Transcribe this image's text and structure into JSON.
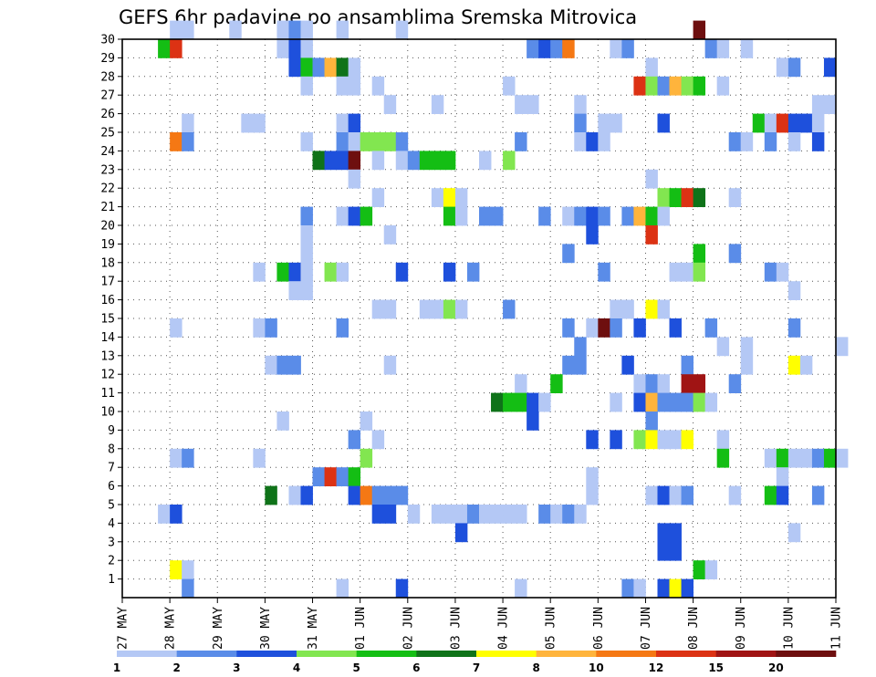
{
  "chart_data": {
    "type": "heatmap",
    "title": "GEFS 6hr padavine po ansamblima Sremska Mitrovica",
    "x_ticks": [
      "27 MAY",
      "28 MAY",
      "29 MAY",
      "30 MAY",
      "31 MAY",
      "01 JUN",
      "02 JUN",
      "03 JUN",
      "04 JUN",
      "05 JUN",
      "06 JUN",
      "07 JUN",
      "08 JUN",
      "09 JUN",
      "10 JUN",
      "11 JUN"
    ],
    "x_range_days": [
      0,
      15
    ],
    "time_step_hours": 6,
    "y_ticks": [
      1,
      2,
      3,
      4,
      5,
      6,
      7,
      8,
      9,
      10,
      11,
      12,
      13,
      14,
      15,
      16,
      17,
      18,
      19,
      20,
      21,
      22,
      23,
      24,
      25,
      26,
      27,
      28,
      29,
      30
    ],
    "y_range": [
      0,
      30
    ],
    "grid": "dotted",
    "colorbar": {
      "labels": [
        "1",
        "2",
        "3",
        "4",
        "5",
        "6",
        "7",
        "8",
        "10",
        "12",
        "15",
        "20"
      ],
      "colors": [
        "#b4c8f5",
        "#5a8ce8",
        "#1e50dc",
        "#82e650",
        "#14be14",
        "#0f7319",
        "#ffff00",
        "#ffb43c",
        "#f57814",
        "#dc3214",
        "#a01414",
        "#6e0f0f"
      ]
    },
    "cells": [
      [
        30,
        4,
        1
      ],
      [
        30,
        5,
        1
      ],
      [
        30,
        9,
        1
      ],
      [
        30,
        13,
        1
      ],
      [
        30,
        14,
        2
      ],
      [
        30,
        15,
        1
      ],
      [
        30,
        18,
        1
      ],
      [
        30,
        23,
        1
      ],
      [
        30,
        48,
        12
      ],
      [
        29,
        3,
        5
      ],
      [
        29,
        4,
        10
      ],
      [
        29,
        13,
        1
      ],
      [
        29,
        14,
        3
      ],
      [
        29,
        15,
        1
      ],
      [
        29,
        34,
        2
      ],
      [
        29,
        35,
        3
      ],
      [
        29,
        36,
        2
      ],
      [
        29,
        37,
        9
      ],
      [
        29,
        41,
        1
      ],
      [
        29,
        42,
        2
      ],
      [
        29,
        49,
        2
      ],
      [
        29,
        50,
        1
      ],
      [
        29,
        52,
        1
      ],
      [
        28,
        14,
        3
      ],
      [
        28,
        15,
        5
      ],
      [
        28,
        16,
        2
      ],
      [
        28,
        17,
        8
      ],
      [
        28,
        18,
        6
      ],
      [
        28,
        19,
        1
      ],
      [
        28,
        44,
        1
      ],
      [
        28,
        55,
        1
      ],
      [
        28,
        56,
        2
      ],
      [
        28,
        59,
        3
      ],
      [
        27,
        15,
        1
      ],
      [
        27,
        18,
        1
      ],
      [
        27,
        19,
        1
      ],
      [
        27,
        21,
        1
      ],
      [
        27,
        32,
        1
      ],
      [
        27,
        43,
        10
      ],
      [
        27,
        44,
        4
      ],
      [
        27,
        45,
        2
      ],
      [
        27,
        46,
        8
      ],
      [
        27,
        47,
        4
      ],
      [
        27,
        48,
        5
      ],
      [
        27,
        50,
        1
      ],
      [
        26,
        22,
        1
      ],
      [
        26,
        26,
        1
      ],
      [
        26,
        33,
        1
      ],
      [
        26,
        34,
        1
      ],
      [
        26,
        38,
        1
      ],
      [
        26,
        58,
        1
      ],
      [
        26,
        59,
        1
      ],
      [
        25,
        5,
        1
      ],
      [
        25,
        10,
        1
      ],
      [
        25,
        11,
        1
      ],
      [
        25,
        18,
        1
      ],
      [
        25,
        19,
        3
      ],
      [
        25,
        38,
        2
      ],
      [
        25,
        40,
        1
      ],
      [
        25,
        41,
        1
      ],
      [
        25,
        45,
        3
      ],
      [
        25,
        53,
        5
      ],
      [
        25,
        54,
        1
      ],
      [
        25,
        55,
        10
      ],
      [
        25,
        56,
        3
      ],
      [
        25,
        57,
        3
      ],
      [
        25,
        58,
        1
      ],
      [
        24,
        4,
        9
      ],
      [
        24,
        5,
        2
      ],
      [
        24,
        15,
        1
      ],
      [
        24,
        18,
        2
      ],
      [
        24,
        19,
        1
      ],
      [
        24,
        20,
        4
      ],
      [
        24,
        21,
        4
      ],
      [
        24,
        22,
        4
      ],
      [
        24,
        23,
        2
      ],
      [
        24,
        33,
        2
      ],
      [
        24,
        38,
        1
      ],
      [
        24,
        39,
        3
      ],
      [
        24,
        40,
        1
      ],
      [
        24,
        51,
        2
      ],
      [
        24,
        52,
        1
      ],
      [
        24,
        54,
        2
      ],
      [
        24,
        56,
        1
      ],
      [
        24,
        58,
        3
      ],
      [
        23,
        16,
        6
      ],
      [
        23,
        17,
        3
      ],
      [
        23,
        18,
        3
      ],
      [
        23,
        19,
        12
      ],
      [
        23,
        21,
        1
      ],
      [
        23,
        23,
        1
      ],
      [
        23,
        24,
        2
      ],
      [
        23,
        25,
        5
      ],
      [
        23,
        26,
        5
      ],
      [
        23,
        27,
        5
      ],
      [
        23,
        30,
        1
      ],
      [
        23,
        32,
        4
      ],
      [
        22,
        19,
        1
      ],
      [
        22,
        44,
        1
      ],
      [
        21,
        21,
        1
      ],
      [
        21,
        26,
        1
      ],
      [
        21,
        27,
        7
      ],
      [
        21,
        28,
        1
      ],
      [
        21,
        45,
        4
      ],
      [
        21,
        46,
        5
      ],
      [
        21,
        47,
        10
      ],
      [
        21,
        48,
        6
      ],
      [
        21,
        51,
        1
      ],
      [
        20,
        15,
        2
      ],
      [
        20,
        18,
        1
      ],
      [
        20,
        19,
        3
      ],
      [
        20,
        20,
        5
      ],
      [
        20,
        27,
        5
      ],
      [
        20,
        28,
        1
      ],
      [
        20,
        30,
        2
      ],
      [
        20,
        31,
        2
      ],
      [
        20,
        35,
        2
      ],
      [
        20,
        37,
        1
      ],
      [
        20,
        38,
        2
      ],
      [
        20,
        39,
        3
      ],
      [
        20,
        40,
        2
      ],
      [
        20,
        42,
        2
      ],
      [
        20,
        43,
        8
      ],
      [
        20,
        44,
        5
      ],
      [
        20,
        45,
        1
      ],
      [
        19,
        15,
        1
      ],
      [
        19,
        22,
        1
      ],
      [
        19,
        39,
        3
      ],
      [
        19,
        44,
        10
      ],
      [
        18,
        15,
        1
      ],
      [
        18,
        37,
        2
      ],
      [
        18,
        48,
        5
      ],
      [
        18,
        51,
        2
      ],
      [
        17,
        11,
        1
      ],
      [
        17,
        13,
        5
      ],
      [
        17,
        14,
        3
      ],
      [
        17,
        15,
        1
      ],
      [
        17,
        17,
        4
      ],
      [
        17,
        18,
        1
      ],
      [
        17,
        23,
        3
      ],
      [
        17,
        27,
        3
      ],
      [
        17,
        29,
        2
      ],
      [
        17,
        40,
        2
      ],
      [
        17,
        46,
        1
      ],
      [
        17,
        47,
        1
      ],
      [
        17,
        48,
        4
      ],
      [
        17,
        54,
        2
      ],
      [
        17,
        55,
        1
      ],
      [
        16,
        14,
        1
      ],
      [
        16,
        15,
        1
      ],
      [
        16,
        56,
        1
      ],
      [
        15,
        21,
        1
      ],
      [
        15,
        22,
        1
      ],
      [
        15,
        25,
        1
      ],
      [
        15,
        26,
        1
      ],
      [
        15,
        27,
        4
      ],
      [
        15,
        28,
        1
      ],
      [
        15,
        32,
        2
      ],
      [
        15,
        41,
        1
      ],
      [
        15,
        42,
        1
      ],
      [
        15,
        44,
        7
      ],
      [
        15,
        45,
        1
      ],
      [
        14,
        4,
        1
      ],
      [
        14,
        11,
        1
      ],
      [
        14,
        12,
        2
      ],
      [
        14,
        18,
        2
      ],
      [
        14,
        37,
        2
      ],
      [
        14,
        39,
        1
      ],
      [
        14,
        40,
        12
      ],
      [
        14,
        41,
        2
      ],
      [
        14,
        43,
        3
      ],
      [
        14,
        46,
        3
      ],
      [
        14,
        49,
        2
      ],
      [
        14,
        56,
        2
      ],
      [
        13,
        38,
        2
      ],
      [
        13,
        50,
        1
      ],
      [
        13,
        52,
        1
      ],
      [
        13,
        60,
        1
      ],
      [
        12,
        12,
        1
      ],
      [
        12,
        13,
        2
      ],
      [
        12,
        14,
        2
      ],
      [
        12,
        22,
        1
      ],
      [
        12,
        37,
        2
      ],
      [
        12,
        38,
        2
      ],
      [
        12,
        42,
        3
      ],
      [
        12,
        47,
        2
      ],
      [
        12,
        52,
        1
      ],
      [
        12,
        56,
        7
      ],
      [
        12,
        57,
        1
      ],
      [
        11,
        33,
        1
      ],
      [
        11,
        36,
        5
      ],
      [
        11,
        43,
        1
      ],
      [
        11,
        44,
        2
      ],
      [
        11,
        45,
        1
      ],
      [
        11,
        47,
        11
      ],
      [
        11,
        48,
        11
      ],
      [
        11,
        51,
        2
      ],
      [
        10,
        31,
        6
      ],
      [
        10,
        32,
        5
      ],
      [
        10,
        33,
        5
      ],
      [
        10,
        34,
        3
      ],
      [
        10,
        35,
        1
      ],
      [
        10,
        41,
        1
      ],
      [
        10,
        43,
        3
      ],
      [
        10,
        44,
        8
      ],
      [
        10,
        45,
        2
      ],
      [
        10,
        46,
        2
      ],
      [
        10,
        47,
        2
      ],
      [
        10,
        48,
        4
      ],
      [
        10,
        49,
        1
      ],
      [
        9,
        13,
        1
      ],
      [
        9,
        34,
        3
      ],
      [
        9,
        44,
        2
      ],
      [
        8,
        19,
        2
      ],
      [
        9,
        20,
        1
      ],
      [
        8,
        21,
        1
      ],
      [
        8,
        39,
        3
      ],
      [
        8,
        41,
        3
      ],
      [
        8,
        43,
        4
      ],
      [
        8,
        44,
        7
      ],
      [
        8,
        45,
        1
      ],
      [
        8,
        46,
        1
      ],
      [
        8,
        47,
        7
      ],
      [
        8,
        50,
        1
      ],
      [
        7,
        4,
        1
      ],
      [
        7,
        5,
        2
      ],
      [
        7,
        11,
        1
      ],
      [
        7,
        20,
        4
      ],
      [
        7,
        50,
        5
      ],
      [
        7,
        54,
        1
      ],
      [
        7,
        55,
        5
      ],
      [
        7,
        56,
        1
      ],
      [
        7,
        57,
        1
      ],
      [
        7,
        58,
        2
      ],
      [
        7,
        59,
        5
      ],
      [
        7,
        60,
        1
      ],
      [
        6,
        16,
        2
      ],
      [
        6,
        17,
        10
      ],
      [
        6,
        18,
        2
      ],
      [
        6,
        19,
        5
      ],
      [
        6,
        39,
        1
      ],
      [
        6,
        55,
        1
      ],
      [
        5,
        12,
        6
      ],
      [
        5,
        14,
        1
      ],
      [
        5,
        15,
        3
      ],
      [
        5,
        19,
        3
      ],
      [
        5,
        20,
        9
      ],
      [
        5,
        21,
        2
      ],
      [
        5,
        22,
        2
      ],
      [
        5,
        23,
        2
      ],
      [
        5,
        39,
        1
      ],
      [
        5,
        44,
        1
      ],
      [
        5,
        45,
        3
      ],
      [
        5,
        46,
        1
      ],
      [
        5,
        47,
        2
      ],
      [
        5,
        51,
        1
      ],
      [
        5,
        54,
        5
      ],
      [
        5,
        55,
        3
      ],
      [
        5,
        58,
        2
      ],
      [
        4,
        3,
        1
      ],
      [
        4,
        4,
        3
      ],
      [
        4,
        21,
        3
      ],
      [
        4,
        22,
        3
      ],
      [
        4,
        24,
        1
      ],
      [
        4,
        26,
        1
      ],
      [
        4,
        27,
        1
      ],
      [
        4,
        28,
        1
      ],
      [
        4,
        29,
        2
      ],
      [
        4,
        30,
        1
      ],
      [
        4,
        31,
        1
      ],
      [
        4,
        32,
        1
      ],
      [
        4,
        33,
        1
      ],
      [
        4,
        35,
        2
      ],
      [
        4,
        36,
        1
      ],
      [
        4,
        37,
        2
      ],
      [
        4,
        38,
        1
      ],
      [
        3,
        28,
        3
      ],
      [
        3,
        45,
        3
      ],
      [
        3,
        46,
        3
      ],
      [
        3,
        56,
        1
      ],
      [
        2,
        45,
        3
      ],
      [
        2,
        46,
        3
      ],
      [
        1,
        4,
        7
      ],
      [
        1,
        5,
        1
      ],
      [
        1,
        48,
        5
      ],
      [
        1,
        49,
        1
      ],
      [
        0,
        5,
        2
      ],
      [
        0,
        18,
        1
      ],
      [
        0,
        23,
        3
      ],
      [
        0,
        33,
        1
      ],
      [
        0,
        42,
        2
      ],
      [
        0,
        43,
        1
      ],
      [
        0,
        45,
        3
      ],
      [
        0,
        46,
        7
      ],
      [
        0,
        47,
        3
      ]
    ]
  }
}
